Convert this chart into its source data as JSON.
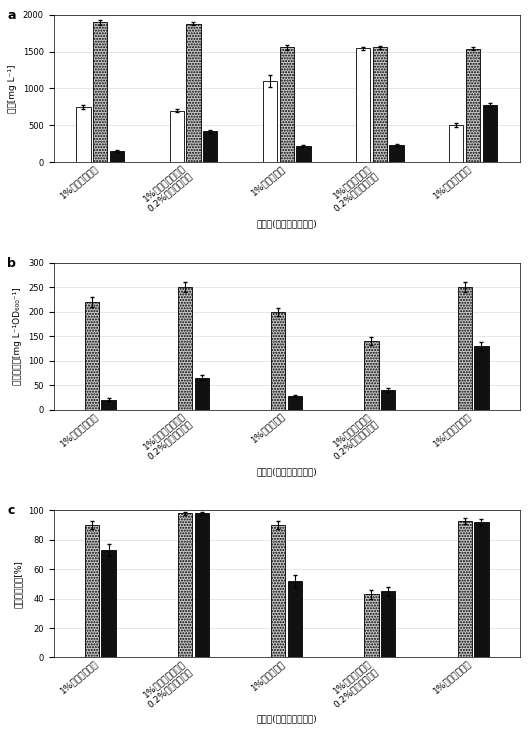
{
  "panel_a": {
    "title": "a",
    "ylabel": "濃度[mg L⁻¹]",
    "xlabel": "炭素源(複数の場合あり)",
    "ylim": [
      0,
      2000
    ],
    "yticks": [
      0,
      500,
      1000,
      1500,
      2000
    ],
    "categories": [
      "1%グリセロール",
      "1%グリセロール／\n0.2%ガラクトース",
      "1%グルコース",
      "1%グルコース／\n0.2%ガラクトース",
      "1%ガラクトース"
    ],
    "white_bars": [
      750,
      700,
      1100,
      1550,
      500
    ],
    "dotted_bars": [
      1900,
      1880,
      1560,
      1560,
      1540
    ],
    "black_bars": [
      150,
      420,
      220,
      230,
      780
    ],
    "white_err": [
      30,
      20,
      80,
      20,
      30
    ],
    "dotted_err": [
      30,
      20,
      30,
      20,
      20
    ],
    "black_err": [
      10,
      20,
      15,
      15,
      20
    ]
  },
  "panel_b": {
    "title": "b",
    "ylabel": "生成物収率[mg L⁻¹OD₆₀₀⁻¹]",
    "xlabel": "炭素源(複数の場合あり)",
    "ylim": [
      0,
      300
    ],
    "yticks": [
      0,
      50,
      100,
      150,
      200,
      250,
      300
    ],
    "categories": [
      "1%グリセロール",
      "1%グリセロール／\n0.2%ガラクトース",
      "1%グルコース",
      "1%グルコース／\n0.2%ガラクトース",
      "1%ガラクトース"
    ],
    "dotted_bars": [
      220,
      250,
      200,
      140,
      250
    ],
    "black_bars": [
      20,
      65,
      28,
      40,
      130
    ],
    "dotted_err": [
      10,
      10,
      8,
      8,
      10
    ],
    "black_err": [
      3,
      5,
      3,
      4,
      8
    ]
  },
  "panel_c": {
    "title": "c",
    "ylabel": "上清中の割合[%]",
    "xlabel": "炭素源(複数の場合あり)",
    "ylim": [
      0,
      100
    ],
    "yticks": [
      0,
      20,
      40,
      60,
      80,
      100
    ],
    "categories": [
      "1%グリセロール",
      "1%グリセロール／\n0.2%ガラクトース",
      "1%グルコース",
      "1%グルコース／\n0.2%ガラクトース",
      "1%ガラクトース"
    ],
    "dotted_bars": [
      90,
      98,
      90,
      43,
      93
    ],
    "black_bars": [
      73,
      98,
      52,
      45,
      92
    ],
    "dotted_err": [
      3,
      1,
      3,
      3,
      2
    ],
    "black_err": [
      4,
      1,
      4,
      3,
      2
    ]
  },
  "bar_width": 0.18,
  "dotted_color": "#c8c8c8",
  "white_color": "#ffffff",
  "black_color": "#111111",
  "grid_color": "#dddddd",
  "font_size_label": 6.5,
  "font_size_tick": 6.0,
  "font_size_panel": 9,
  "font_size_xlabel": 6.5
}
